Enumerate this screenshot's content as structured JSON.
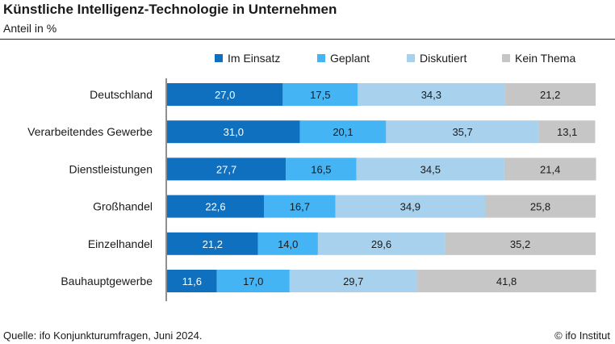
{
  "title": "Künstliche Intelligenz-Technologie in Unternehmen",
  "subtitle": "Anteil in %",
  "source": "Quelle: ifo Konjunkturumfragen, Juni 2024.",
  "copyright": "© ifo Institut",
  "chart_data": {
    "type": "bar",
    "orientation": "horizontal",
    "stacked": true,
    "title": "Künstliche Intelligenz-Technologie in Unternehmen",
    "subtitle": "Anteil in %",
    "categories": [
      "Deutschland",
      "Verarbeitendes Gewerbe",
      "Dienstleistungen",
      "Großhandel",
      "Einzelhandel",
      "Bauhauptgewerbe"
    ],
    "series": [
      {
        "name": "Im Einsatz",
        "color": "#1070c0",
        "label_color": "#ffffff",
        "values": [
          27.0,
          31.0,
          27.7,
          22.6,
          21.2,
          11.6
        ]
      },
      {
        "name": "Geplant",
        "color": "#44b4f5",
        "label_color": "#1a1a1a",
        "values": [
          17.5,
          20.1,
          16.5,
          16.7,
          14.0,
          17.0
        ]
      },
      {
        "name": "Diskutiert",
        "color": "#a7d1ec",
        "label_color": "#1a1a1a",
        "values": [
          34.3,
          35.7,
          34.5,
          34.9,
          29.6,
          29.7
        ]
      },
      {
        "name": "Kein Thema",
        "color": "#c6c6c6",
        "label_color": "#1a1a1a",
        "values": [
          21.2,
          13.1,
          21.4,
          25.8,
          35.2,
          41.8
        ]
      }
    ],
    "xlim": [
      0,
      100
    ],
    "decimal_separator": ",",
    "legend_position": "top",
    "grid": false
  }
}
